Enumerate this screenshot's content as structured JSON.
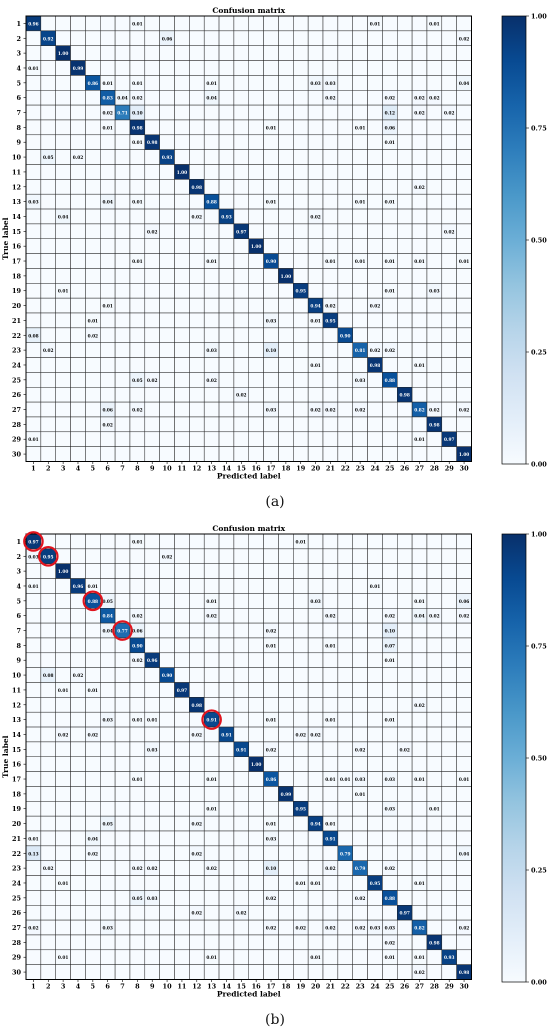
{
  "captions": [
    "(a)",
    "(b)"
  ],
  "chart_data": [
    {
      "type": "heatmap",
      "title": "Confusion matrix",
      "xlabel": "Predicted label",
      "ylabel": "True label",
      "categories": [
        "1",
        "2",
        "3",
        "4",
        "5",
        "6",
        "7",
        "8",
        "9",
        "10",
        "11",
        "12",
        "13",
        "14",
        "15",
        "16",
        "17",
        "18",
        "19",
        "20",
        "21",
        "22",
        "23",
        "24",
        "25",
        "26",
        "27",
        "28",
        "29",
        "30"
      ],
      "colorbar": {
        "ticks": [
          "0.00",
          "0.25",
          "0.50",
          "0.75",
          "1.00"
        ],
        "range": [
          0,
          1
        ],
        "colormap": "Blues"
      },
      "diagonal": [
        0.96,
        0.92,
        1.0,
        0.99,
        0.86,
        0.83,
        0.71,
        0.98,
        0.98,
        0.93,
        1.0,
        0.98,
        0.88,
        0.93,
        0.97,
        1.0,
        0.9,
        1.0,
        0.95,
        0.94,
        0.95,
        0.9,
        0.81,
        0.98,
        0.88,
        0.98,
        0.82,
        0.98,
        0.97,
        1.0
      ],
      "cells": [
        [
          1,
          8,
          0.01
        ],
        [
          1,
          24,
          0.01
        ],
        [
          1,
          28,
          0.01
        ],
        [
          2,
          10,
          0.06
        ],
        [
          2,
          30,
          0.02
        ],
        [
          4,
          1,
          0.01
        ],
        [
          5,
          6,
          0.01
        ],
        [
          5,
          8,
          0.01
        ],
        [
          5,
          13,
          0.01
        ],
        [
          5,
          20,
          0.03
        ],
        [
          5,
          21,
          0.03
        ],
        [
          5,
          30,
          0.04
        ],
        [
          6,
          7,
          0.04
        ],
        [
          6,
          8,
          0.02
        ],
        [
          6,
          13,
          0.04
        ],
        [
          6,
          21,
          0.02
        ],
        [
          6,
          25,
          0.02
        ],
        [
          6,
          27,
          0.02
        ],
        [
          6,
          28,
          0.02
        ],
        [
          7,
          6,
          0.02
        ],
        [
          7,
          8,
          0.1
        ],
        [
          7,
          25,
          0.12
        ],
        [
          7,
          27,
          0.02
        ],
        [
          7,
          29,
          0.02
        ],
        [
          8,
          6,
          0.01
        ],
        [
          8,
          17,
          0.01
        ],
        [
          8,
          23,
          0.01
        ],
        [
          8,
          25,
          0.06
        ],
        [
          9,
          8,
          0.01
        ],
        [
          9,
          25,
          0.01
        ],
        [
          10,
          2,
          0.05
        ],
        [
          10,
          4,
          0.02
        ],
        [
          12,
          27,
          0.02
        ],
        [
          13,
          1,
          0.03
        ],
        [
          13,
          6,
          0.04
        ],
        [
          13,
          8,
          0.01
        ],
        [
          13,
          17,
          0.01
        ],
        [
          13,
          23,
          0.01
        ],
        [
          13,
          25,
          0.01
        ],
        [
          14,
          3,
          0.04
        ],
        [
          14,
          12,
          0.02
        ],
        [
          14,
          20,
          0.02
        ],
        [
          15,
          9,
          0.02
        ],
        [
          15,
          29,
          0.02
        ],
        [
          17,
          8,
          0.01
        ],
        [
          17,
          13,
          0.01
        ],
        [
          17,
          21,
          0.01
        ],
        [
          17,
          23,
          0.01
        ],
        [
          17,
          25,
          0.01
        ],
        [
          17,
          27,
          0.01
        ],
        [
          17,
          30,
          0.01
        ],
        [
          19,
          3,
          0.01
        ],
        [
          19,
          25,
          0.01
        ],
        [
          19,
          28,
          0.03
        ],
        [
          20,
          6,
          0.01
        ],
        [
          20,
          21,
          0.02
        ],
        [
          20,
          24,
          0.02
        ],
        [
          21,
          5,
          0.01
        ],
        [
          21,
          17,
          0.03
        ],
        [
          21,
          20,
          0.01
        ],
        [
          22,
          1,
          0.08
        ],
        [
          22,
          5,
          0.02
        ],
        [
          23,
          2,
          0.02
        ],
        [
          23,
          13,
          0.03
        ],
        [
          23,
          17,
          0.1
        ],
        [
          23,
          24,
          0.02
        ],
        [
          23,
          25,
          0.02
        ],
        [
          24,
          20,
          0.01
        ],
        [
          24,
          27,
          0.01
        ],
        [
          25,
          8,
          0.05
        ],
        [
          25,
          9,
          0.02
        ],
        [
          25,
          13,
          0.02
        ],
        [
          25,
          23,
          0.03
        ],
        [
          26,
          15,
          0.02
        ],
        [
          27,
          6,
          0.06
        ],
        [
          27,
          8,
          0.02
        ],
        [
          27,
          17,
          0.03
        ],
        [
          27,
          20,
          0.02
        ],
        [
          27,
          21,
          0.02
        ],
        [
          27,
          23,
          0.02
        ],
        [
          27,
          28,
          0.02
        ],
        [
          27,
          30,
          0.02
        ],
        [
          28,
          6,
          0.02
        ],
        [
          29,
          1,
          0.01
        ],
        [
          29,
          27,
          0.01
        ]
      ],
      "circled": []
    },
    {
      "type": "heatmap",
      "title": "Confusion matrix",
      "xlabel": "Predicted label",
      "ylabel": "True label",
      "categories": [
        "1",
        "2",
        "3",
        "4",
        "5",
        "6",
        "7",
        "8",
        "9",
        "10",
        "11",
        "12",
        "13",
        "14",
        "15",
        "16",
        "17",
        "18",
        "19",
        "20",
        "21",
        "22",
        "23",
        "24",
        "25",
        "26",
        "27",
        "28",
        "29",
        "30"
      ],
      "colorbar": {
        "ticks": [
          "0.00",
          "0.25",
          "0.50",
          "0.75",
          "1.00"
        ],
        "range": [
          0,
          1
        ],
        "colormap": "Blues"
      },
      "diagonal": [
        0.97,
        0.95,
        1.0,
        0.96,
        0.88,
        0.84,
        0.77,
        0.9,
        0.96,
        0.9,
        0.97,
        0.98,
        0.91,
        0.91,
        0.91,
        1.0,
        0.86,
        0.99,
        0.95,
        0.94,
        0.91,
        0.79,
        0.79,
        0.95,
        0.88,
        0.97,
        0.82,
        0.98,
        0.93,
        0.98
      ],
      "cells": [
        [
          1,
          8,
          0.01
        ],
        [
          1,
          19,
          0.01
        ],
        [
          2,
          1,
          0.03
        ],
        [
          2,
          10,
          0.02
        ],
        [
          4,
          1,
          0.01
        ],
        [
          4,
          5,
          0.01
        ],
        [
          4,
          24,
          0.01
        ],
        [
          5,
          6,
          0.05
        ],
        [
          5,
          13,
          0.01
        ],
        [
          5,
          20,
          0.03
        ],
        [
          5,
          27,
          0.01
        ],
        [
          5,
          30,
          0.06
        ],
        [
          6,
          8,
          0.02
        ],
        [
          6,
          13,
          0.02
        ],
        [
          6,
          21,
          0.02
        ],
        [
          6,
          25,
          0.02
        ],
        [
          6,
          27,
          0.04
        ],
        [
          6,
          28,
          0.02
        ],
        [
          6,
          30,
          0.02
        ],
        [
          7,
          6,
          0.04
        ],
        [
          7,
          8,
          0.06
        ],
        [
          7,
          17,
          0.02
        ],
        [
          7,
          25,
          0.1
        ],
        [
          8,
          17,
          0.01
        ],
        [
          8,
          21,
          0.01
        ],
        [
          8,
          25,
          0.07
        ],
        [
          9,
          8,
          0.02
        ],
        [
          9,
          25,
          0.01
        ],
        [
          10,
          2,
          0.08
        ],
        [
          10,
          4,
          0.02
        ],
        [
          11,
          3,
          0.01
        ],
        [
          11,
          5,
          0.01
        ],
        [
          12,
          27,
          0.02
        ],
        [
          13,
          6,
          0.03
        ],
        [
          13,
          8,
          0.01
        ],
        [
          13,
          9,
          0.01
        ],
        [
          13,
          17,
          0.01
        ],
        [
          13,
          21,
          0.01
        ],
        [
          13,
          25,
          0.01
        ],
        [
          14,
          3,
          0.02
        ],
        [
          14,
          5,
          0.02
        ],
        [
          14,
          12,
          0.02
        ],
        [
          14,
          19,
          0.02
        ],
        [
          14,
          20,
          0.02
        ],
        [
          15,
          9,
          0.03
        ],
        [
          15,
          17,
          0.02
        ],
        [
          15,
          23,
          0.02
        ],
        [
          15,
          26,
          0.02
        ],
        [
          17,
          8,
          0.01
        ],
        [
          17,
          13,
          0.01
        ],
        [
          17,
          21,
          0.01
        ],
        [
          17,
          22,
          0.01
        ],
        [
          17,
          23,
          0.03
        ],
        [
          17,
          25,
          0.03
        ],
        [
          17,
          27,
          0.01
        ],
        [
          17,
          30,
          0.01
        ],
        [
          18,
          23,
          0.01
        ],
        [
          19,
          13,
          0.01
        ],
        [
          19,
          25,
          0.03
        ],
        [
          19,
          28,
          0.01
        ],
        [
          20,
          6,
          0.05
        ],
        [
          20,
          12,
          0.02
        ],
        [
          20,
          17,
          0.01
        ],
        [
          20,
          21,
          0.01
        ],
        [
          21,
          1,
          0.01
        ],
        [
          21,
          5,
          0.04
        ],
        [
          21,
          17,
          0.03
        ],
        [
          22,
          1,
          0.13
        ],
        [
          22,
          5,
          0.02
        ],
        [
          22,
          12,
          0.02
        ],
        [
          22,
          30,
          0.04
        ],
        [
          23,
          2,
          0.02
        ],
        [
          23,
          8,
          0.02
        ],
        [
          23,
          9,
          0.02
        ],
        [
          23,
          13,
          0.02
        ],
        [
          23,
          17,
          0.1
        ],
        [
          23,
          21,
          0.02
        ],
        [
          23,
          25,
          0.02
        ],
        [
          24,
          3,
          0.01
        ],
        [
          24,
          19,
          0.01
        ],
        [
          24,
          20,
          0.01
        ],
        [
          24,
          27,
          0.01
        ],
        [
          25,
          8,
          0.05
        ],
        [
          25,
          9,
          0.03
        ],
        [
          25,
          17,
          0.02
        ],
        [
          25,
          23,
          0.02
        ],
        [
          26,
          12,
          0.02
        ],
        [
          26,
          15,
          0.02
        ],
        [
          27,
          1,
          0.02
        ],
        [
          27,
          6,
          0.03
        ],
        [
          27,
          17,
          0.02
        ],
        [
          27,
          19,
          0.02
        ],
        [
          27,
          21,
          0.02
        ],
        [
          27,
          23,
          0.02
        ],
        [
          27,
          24,
          0.03
        ],
        [
          27,
          25,
          0.03
        ],
        [
          27,
          30,
          0.02
        ],
        [
          28,
          25,
          0.02
        ],
        [
          29,
          3,
          0.01
        ],
        [
          29,
          13,
          0.01
        ],
        [
          29,
          20,
          0.01
        ],
        [
          29,
          25,
          0.01
        ],
        [
          29,
          27,
          0.01
        ],
        [
          30,
          27,
          0.02
        ]
      ],
      "circled": [
        1,
        2,
        5,
        7,
        13
      ]
    }
  ]
}
